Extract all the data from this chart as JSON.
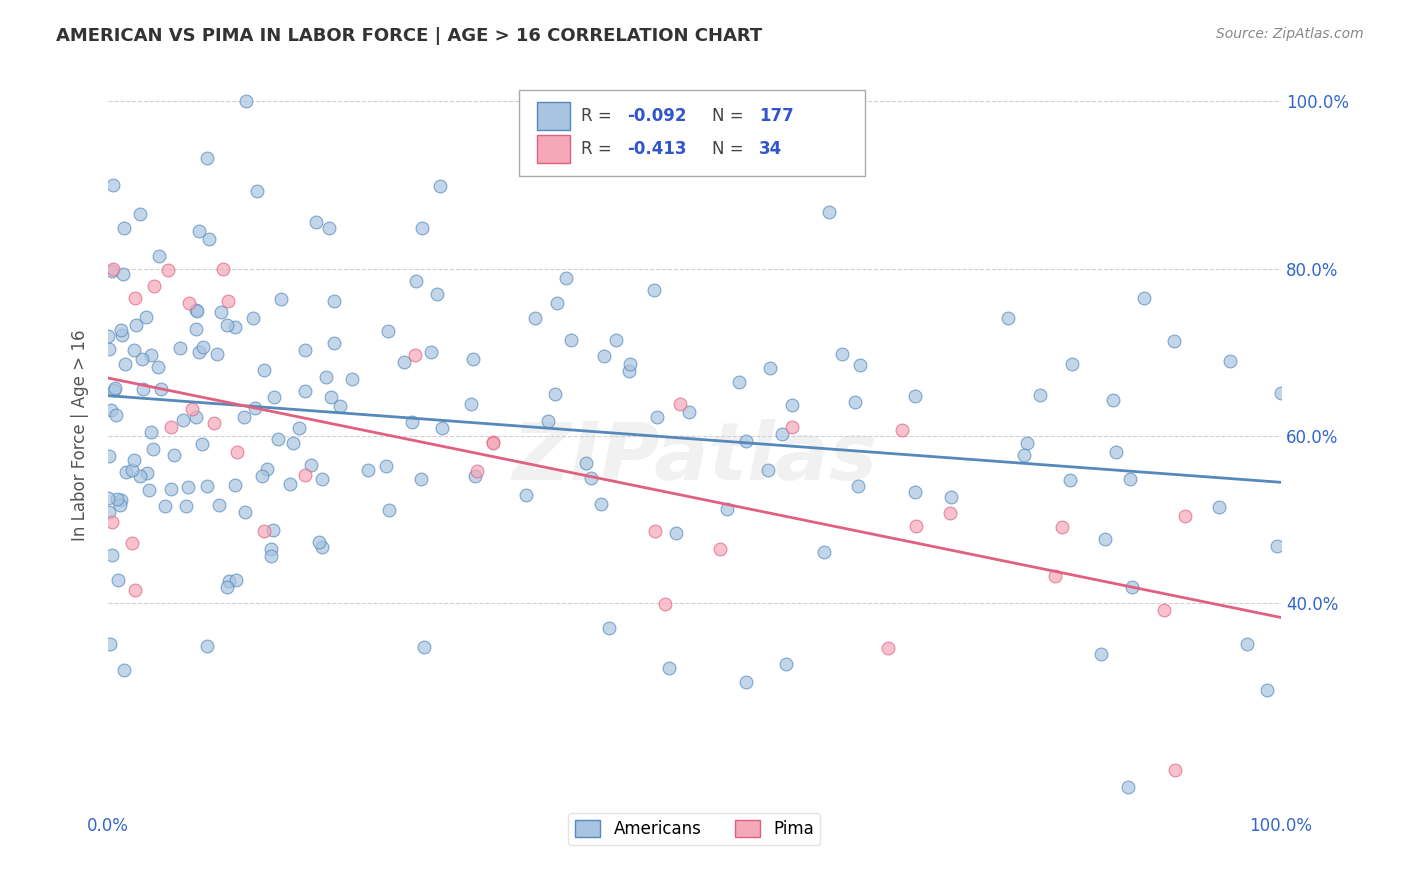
{
  "title": "AMERICAN VS PIMA IN LABOR FORCE | AGE > 16 CORRELATION CHART",
  "source": "Source: ZipAtlas.com",
  "ylabel": "In Labor Force | Age > 16",
  "american_color": "#a8c4e0",
  "pima_color": "#f4a8b8",
  "american_line_color": "#5588bb",
  "pima_line_color": "#e06080",
  "watermark": "ZIPatlas",
  "american_R": -0.092,
  "american_N": 177,
  "pima_R": -0.413,
  "pima_N": 34,
  "xlim": [
    0.0,
    1.0
  ],
  "ylim": [
    0.15,
    1.05
  ],
  "american_seed": 42,
  "pima_seed": 7
}
